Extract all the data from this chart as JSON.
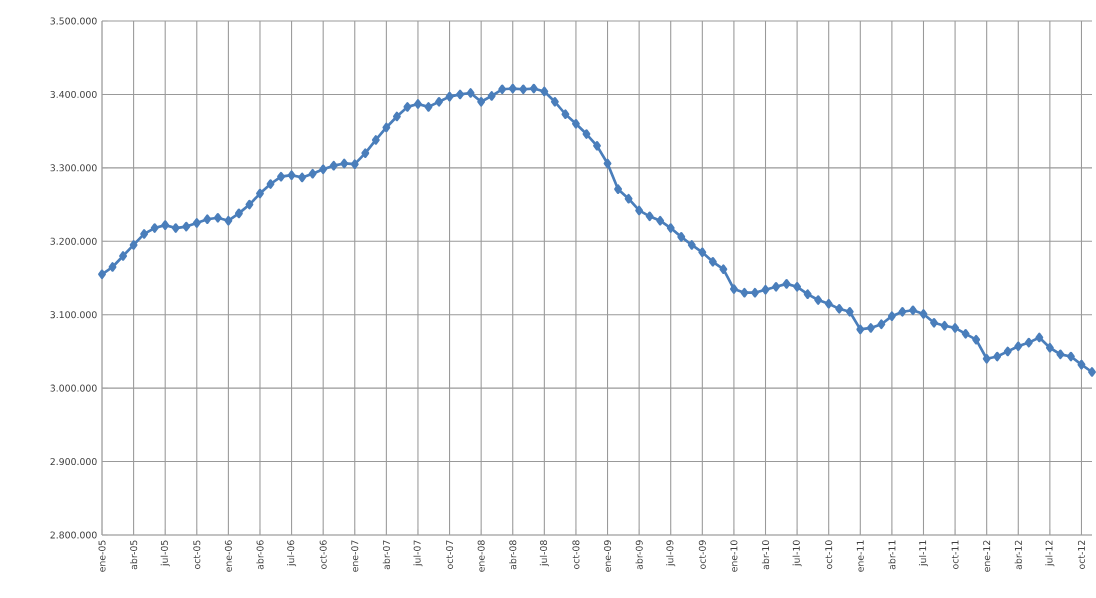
{
  "chart_data": {
    "type": "line",
    "x": [
      "2005-01",
      "2005-02",
      "2005-03",
      "2005-04",
      "2005-05",
      "2005-06",
      "2005-07",
      "2005-08",
      "2005-09",
      "2005-10",
      "2005-11",
      "2005-12",
      "2006-01",
      "2006-02",
      "2006-03",
      "2006-04",
      "2006-05",
      "2006-06",
      "2006-07",
      "2006-08",
      "2006-09",
      "2006-10",
      "2006-11",
      "2006-12",
      "2007-01",
      "2007-02",
      "2007-03",
      "2007-04",
      "2007-05",
      "2007-06",
      "2007-07",
      "2007-08",
      "2007-09",
      "2007-10",
      "2007-11",
      "2007-12",
      "2008-01",
      "2008-02",
      "2008-03",
      "2008-04",
      "2008-05",
      "2008-06",
      "2008-07",
      "2008-08",
      "2008-09",
      "2008-10",
      "2008-11",
      "2008-12",
      "2009-01",
      "2009-02",
      "2009-03",
      "2009-04",
      "2009-05",
      "2009-06",
      "2009-07",
      "2009-08",
      "2009-09",
      "2009-10",
      "2009-11",
      "2009-12",
      "2010-01",
      "2010-02",
      "2010-03",
      "2010-04",
      "2010-05",
      "2010-06",
      "2010-07",
      "2010-08",
      "2010-09",
      "2010-10",
      "2010-11",
      "2010-12",
      "2011-01",
      "2011-02",
      "2011-03",
      "2011-04",
      "2011-05",
      "2011-06",
      "2011-07",
      "2011-08",
      "2011-09",
      "2011-10",
      "2011-11",
      "2011-12",
      "2012-01",
      "2012-02",
      "2012-03",
      "2012-04",
      "2012-05",
      "2012-06",
      "2012-07",
      "2012-08",
      "2012-09",
      "2012-10",
      "2012-11"
    ],
    "series": [
      {
        "color": "#4a7ebb",
        "values": [
          3155000,
          3165000,
          3180000,
          3195000,
          3210000,
          3218000,
          3222000,
          3218000,
          3220000,
          3225000,
          3230000,
          3232000,
          3228000,
          3238000,
          3250000,
          3265000,
          3278000,
          3288000,
          3290000,
          3287000,
          3292000,
          3298000,
          3303000,
          3306000,
          3305000,
          3320000,
          3338000,
          3355000,
          3370000,
          3383000,
          3387000,
          3383000,
          3390000,
          3397000,
          3400000,
          3402000,
          3390000,
          3398000,
          3407000,
          3408000,
          3407000,
          3408000,
          3404000,
          3390000,
          3373000,
          3360000,
          3346000,
          3330000,
          3306000,
          3271000,
          3258000,
          3242000,
          3234000,
          3228000,
          3218000,
          3206000,
          3195000,
          3185000,
          3172000,
          3162000,
          3135000,
          3130000,
          3130000,
          3134000,
          3138000,
          3142000,
          3138000,
          3128000,
          3120000,
          3115000,
          3108000,
          3104000,
          3080000,
          3082000,
          3087000,
          3098000,
          3104000,
          3106000,
          3101000,
          3089000,
          3085000,
          3082000,
          3074000,
          3066000,
          3040000,
          3043000,
          3050000,
          3057000,
          3062000,
          3069000,
          3055000,
          3046000,
          3043000,
          3032000,
          3022000
        ]
      }
    ],
    "xlim": [
      "2005-01",
      "2012-11"
    ],
    "ylim": [
      2800000,
      3500000
    ],
    "yticks": [
      {
        "value": 2800000,
        "label": "2.800.000"
      },
      {
        "value": 2900000,
        "label": "2.900.000"
      },
      {
        "value": 3000000,
        "label": "3.000.000"
      },
      {
        "value": 3100000,
        "label": "3.100.000"
      },
      {
        "value": 3200000,
        "label": "3.200.000"
      },
      {
        "value": 3300000,
        "label": "3.300.000"
      },
      {
        "value": 3400000,
        "label": "3.400.000"
      },
      {
        "value": 3500000,
        "label": "3.500.000"
      }
    ],
    "xticks": [
      {
        "value": "2005-01",
        "label": "ene-05"
      },
      {
        "value": "2005-04",
        "label": "abr-05"
      },
      {
        "value": "2005-07",
        "label": "jul-05"
      },
      {
        "value": "2005-10",
        "label": "oct-05"
      },
      {
        "value": "2006-01",
        "label": "ene-06"
      },
      {
        "value": "2006-04",
        "label": "abr-06"
      },
      {
        "value": "2006-07",
        "label": "jul-06"
      },
      {
        "value": "2006-10",
        "label": "oct-06"
      },
      {
        "value": "2007-01",
        "label": "ene-07"
      },
      {
        "value": "2007-04",
        "label": "abr-07"
      },
      {
        "value": "2007-07",
        "label": "jul-07"
      },
      {
        "value": "2007-10",
        "label": "oct-07"
      },
      {
        "value": "2008-01",
        "label": "ene-08"
      },
      {
        "value": "2008-04",
        "label": "abr-08"
      },
      {
        "value": "2008-07",
        "label": "jul-08"
      },
      {
        "value": "2008-10",
        "label": "oct-08"
      },
      {
        "value": "2009-01",
        "label": "ene-09"
      },
      {
        "value": "2009-04",
        "label": "abr-09"
      },
      {
        "value": "2009-07",
        "label": "jul-09"
      },
      {
        "value": "2009-10",
        "label": "oct-09"
      },
      {
        "value": "2010-01",
        "label": "ene-10"
      },
      {
        "value": "2010-04",
        "label": "abr-10"
      },
      {
        "value": "2010-07",
        "label": "jul-10"
      },
      {
        "value": "2010-10",
        "label": "oct-10"
      },
      {
        "value": "2011-01",
        "label": "ene-11"
      },
      {
        "value": "2011-04",
        "label": "abr-11"
      },
      {
        "value": "2011-07",
        "label": "jul-11"
      },
      {
        "value": "2011-10",
        "label": "oct-11"
      },
      {
        "value": "2012-01",
        "label": "ene-12"
      },
      {
        "value": "2012-04",
        "label": "abr-12"
      },
      {
        "value": "2012-07",
        "label": "jul-12"
      },
      {
        "value": "2012-10",
        "label": "oct-12"
      }
    ],
    "grid": true,
    "marker": "diamond",
    "line_style": "solid"
  }
}
